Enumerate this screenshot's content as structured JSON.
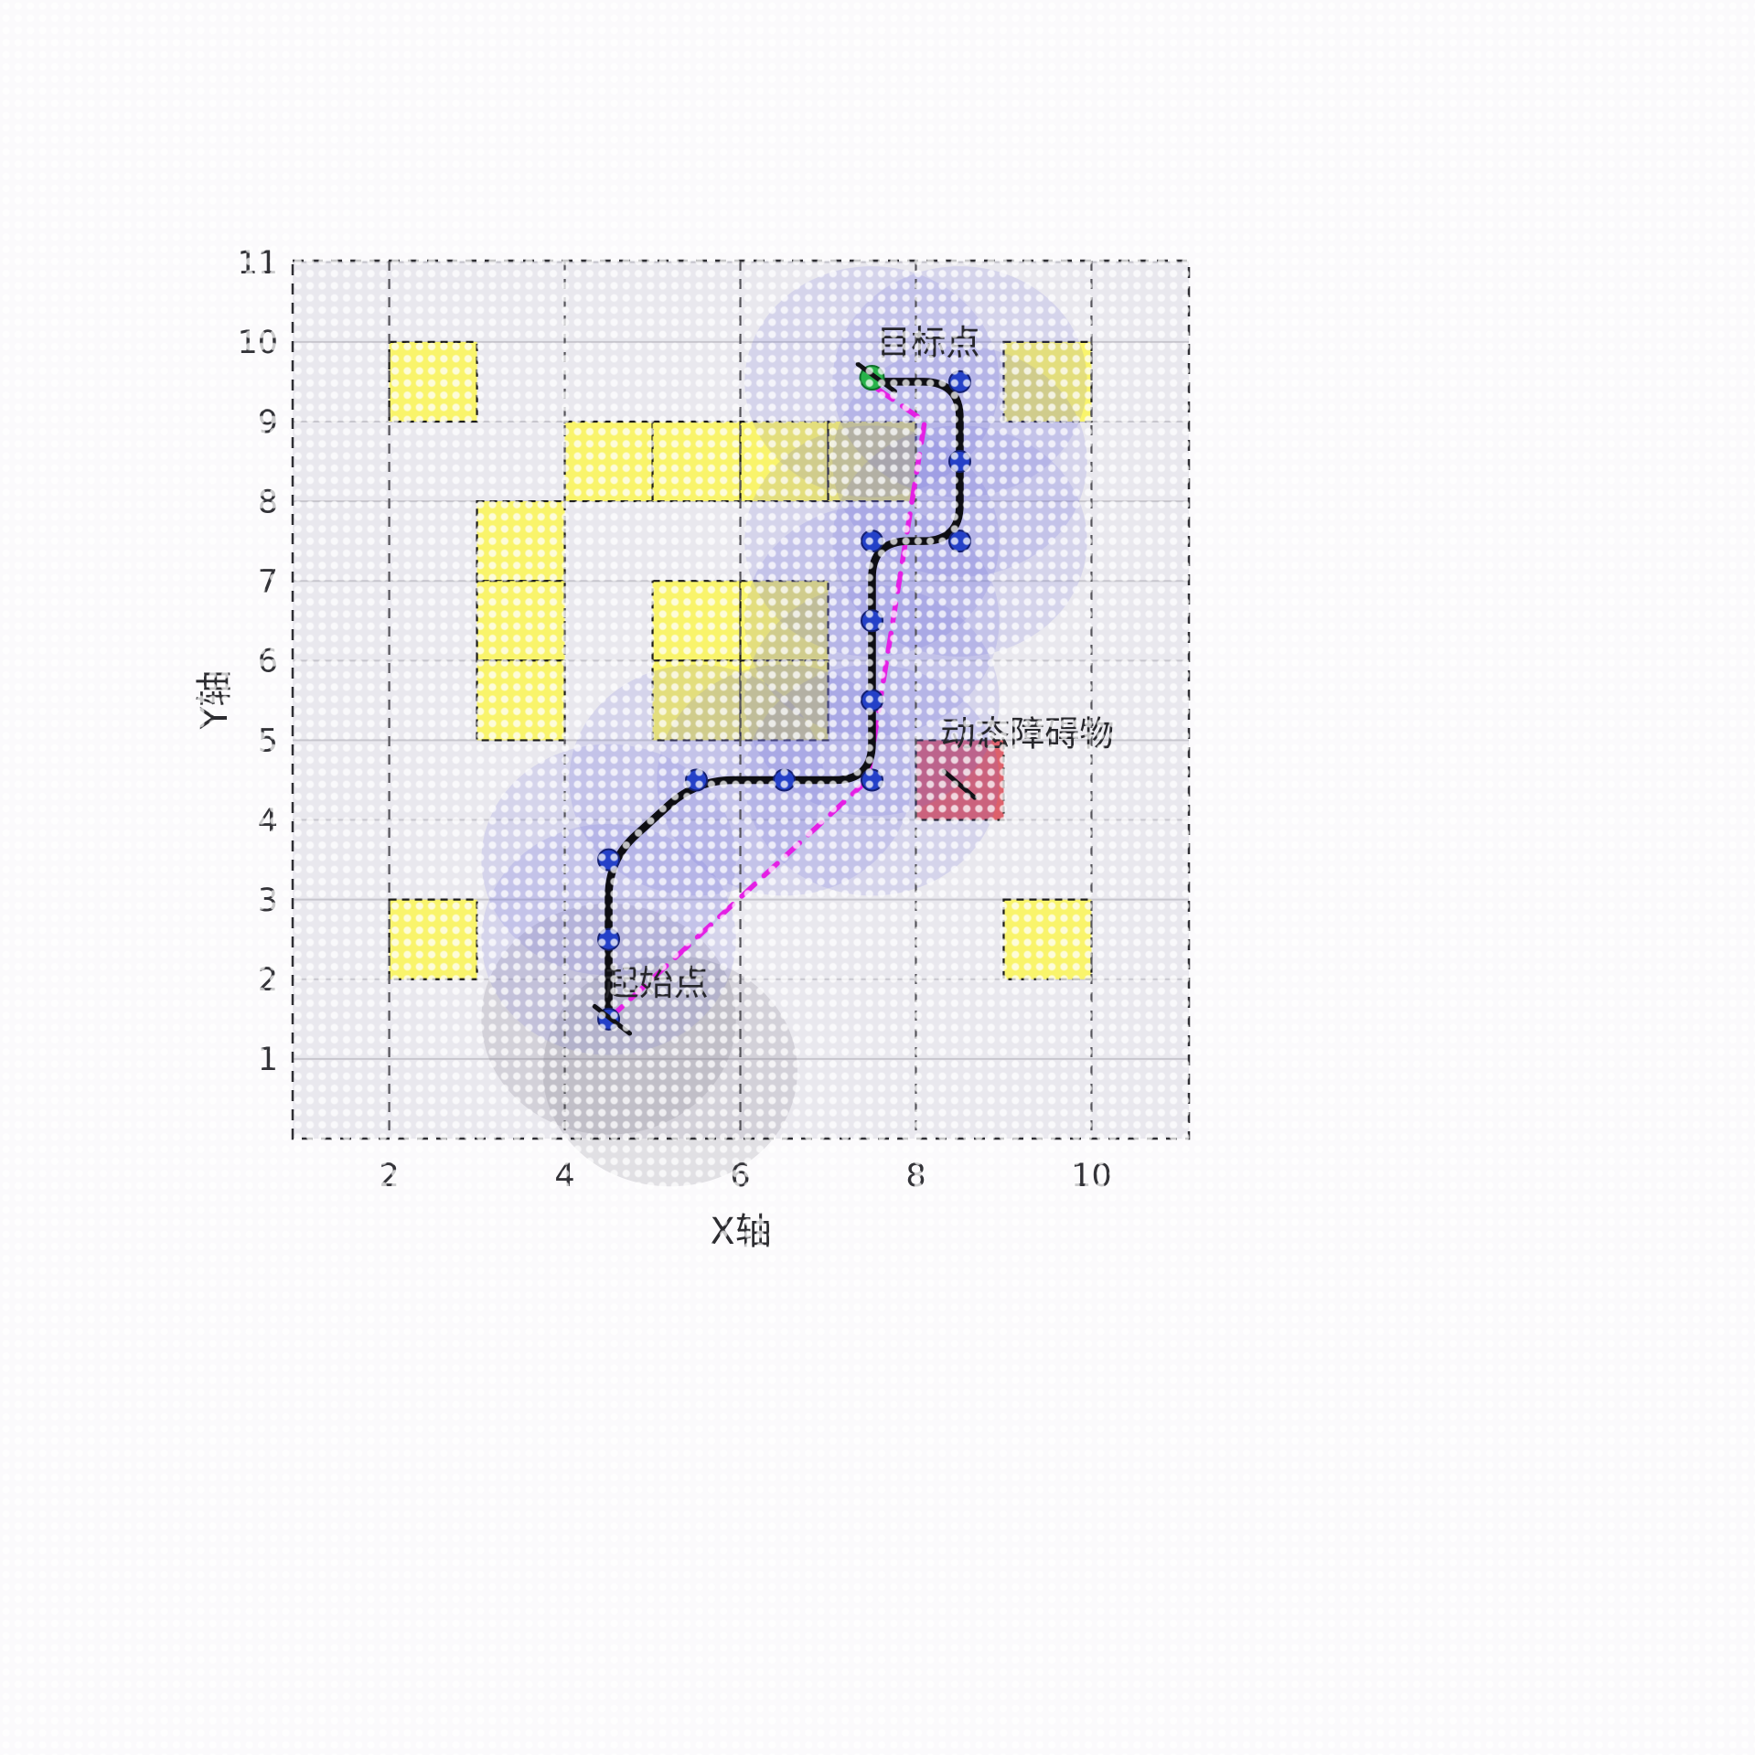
{
  "figure": {
    "background": "#fbfafc",
    "plot_background": "#e9e8ee"
  },
  "chart_data": {
    "type": "scatter",
    "title": "",
    "xlabel": "X轴",
    "ylabel": "Y轴",
    "xlim": [
      0.9,
      11.11
    ],
    "ylim": [
      0,
      11.02
    ],
    "x_ticks": [
      2,
      4,
      6,
      8,
      10
    ],
    "y_ticks": [
      1,
      2,
      3,
      4,
      5,
      6,
      7,
      8,
      9,
      10,
      11
    ],
    "grid": {
      "horizontal_lines": [
        1,
        2,
        3,
        4,
        5,
        6,
        7,
        8,
        9,
        10,
        11
      ],
      "vertical_dashed_lines": [
        2,
        4,
        6,
        8,
        10
      ],
      "horizontal_color": "#c7c6cd",
      "vertical_color": "#55545a"
    },
    "static_obstacles": {
      "fill": "#faf45f",
      "stroke": "#1c1c1c",
      "cells": [
        [
          2,
          9
        ],
        [
          9,
          9
        ],
        [
          4,
          8
        ],
        [
          5,
          8
        ],
        [
          6,
          8
        ],
        [
          7,
          8
        ],
        [
          3,
          7
        ],
        [
          3,
          6
        ],
        [
          3,
          5
        ],
        [
          5,
          6
        ],
        [
          6,
          6
        ],
        [
          5,
          5
        ],
        [
          6,
          5
        ],
        [
          2,
          2
        ],
        [
          9,
          2
        ]
      ]
    },
    "dynamic_obstacle": {
      "fill": "#dc5a63",
      "stroke": "#1c1c1c",
      "cell": [
        8,
        4
      ],
      "label": "动态障碍物",
      "label_x": 8.28,
      "label_y": 4.93,
      "marker_line": [
        8.32,
        4.61,
        8.67,
        4.28
      ]
    },
    "sensing_circles": {
      "radius": 1.45,
      "blue_fill": "rgba(108,108,226,0.155)",
      "gray_fill": "rgba(125,120,135,0.20)",
      "blue_centers": [
        [
          4.5,
          2.5
        ],
        [
          4.5,
          3.5
        ],
        [
          5.5,
          4.5
        ],
        [
          6.5,
          4.5
        ],
        [
          7.5,
          4.5
        ],
        [
          7.5,
          5.5
        ],
        [
          7.5,
          6.5
        ],
        [
          7.5,
          7.5
        ],
        [
          8.5,
          7.5
        ],
        [
          8.5,
          8.5
        ],
        [
          8.5,
          9.5
        ],
        [
          7.5,
          9.5
        ]
      ],
      "gray_centers": [
        [
          4.5,
          1.5
        ],
        [
          5.2,
          0.85
        ]
      ]
    },
    "reference_path": {
      "color": "#e41fe4",
      "width": 5.5,
      "dash": "20 13",
      "points": [
        [
          4.5,
          1.5
        ],
        [
          7.45,
          4.5
        ],
        [
          8.1,
          9.0
        ],
        [
          7.55,
          9.42
        ]
      ]
    },
    "planned_path": {
      "color": "#0e0e13",
      "width": 8.5,
      "corner_radius": 0.42,
      "points": [
        [
          4.5,
          1.5
        ],
        [
          4.5,
          2.5
        ],
        [
          4.5,
          3.5
        ],
        [
          5.5,
          4.5
        ],
        [
          6.5,
          4.5
        ],
        [
          7.5,
          4.5
        ],
        [
          7.5,
          5.5
        ],
        [
          7.5,
          6.5
        ],
        [
          7.5,
          7.5
        ],
        [
          8.5,
          7.5
        ],
        [
          8.5,
          8.5
        ],
        [
          8.5,
          9.5
        ],
        [
          7.55,
          9.5
        ]
      ]
    },
    "waypoints": {
      "fill": "#2441c8",
      "stroke": "#131f71",
      "radius_px": 11.5,
      "points": [
        [
          4.5,
          1.5
        ],
        [
          4.5,
          2.5
        ],
        [
          4.5,
          3.5
        ],
        [
          5.5,
          4.5
        ],
        [
          6.5,
          4.5
        ],
        [
          7.5,
          4.5
        ],
        [
          7.5,
          5.5
        ],
        [
          7.5,
          6.5
        ],
        [
          7.5,
          7.5
        ],
        [
          8.5,
          7.5
        ],
        [
          8.5,
          8.5
        ],
        [
          8.5,
          9.5
        ]
      ]
    },
    "start": {
      "x": 4.5,
      "y": 1.5,
      "label": "起始点",
      "label_x": 4.45,
      "label_y": 1.8,
      "marker_line": [
        4.34,
        1.66,
        4.74,
        1.32
      ]
    },
    "goal": {
      "x": 7.5,
      "y": 9.55,
      "fill": "#28b24a",
      "stroke": "#0f6e2a",
      "radius_px": 13,
      "label": "目标点",
      "label_x": 7.55,
      "label_y": 9.84,
      "marker_line": [
        7.34,
        9.72,
        7.76,
        9.38
      ]
    },
    "axes_style": {
      "border_color": "#2e2e33",
      "tick_color": "#333338",
      "label_color": "#2c2c30",
      "annotation_color": "#26262b"
    }
  }
}
